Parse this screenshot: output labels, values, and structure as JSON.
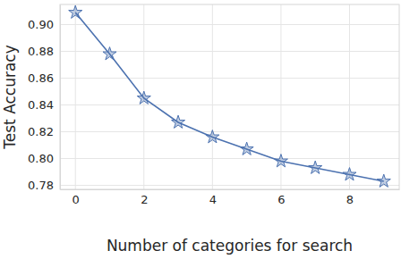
{
  "chart_data": {
    "type": "line",
    "x": [
      0,
      1,
      2,
      3,
      4,
      5,
      6,
      7,
      8,
      9
    ],
    "values": [
      0.909,
      0.878,
      0.845,
      0.827,
      0.816,
      0.807,
      0.798,
      0.793,
      0.788,
      0.783
    ],
    "color": "#4c72b0",
    "marker": "star",
    "x_label": "Number of categories for search",
    "y_label": "Test Accuracy",
    "xlim": [
      -0.45,
      9.45
    ],
    "xticks": [
      0,
      2,
      4,
      6,
      8
    ],
    "ylim": [
      0.777,
      0.915
    ],
    "yticks": [
      0.78,
      {
        "value": 0.8,
        "label": "0.80"
      },
      0.82,
      0.84,
      0.86,
      0.88,
      {
        "value": 0.9,
        "label": "0.90"
      }
    ],
    "grid": true
  }
}
